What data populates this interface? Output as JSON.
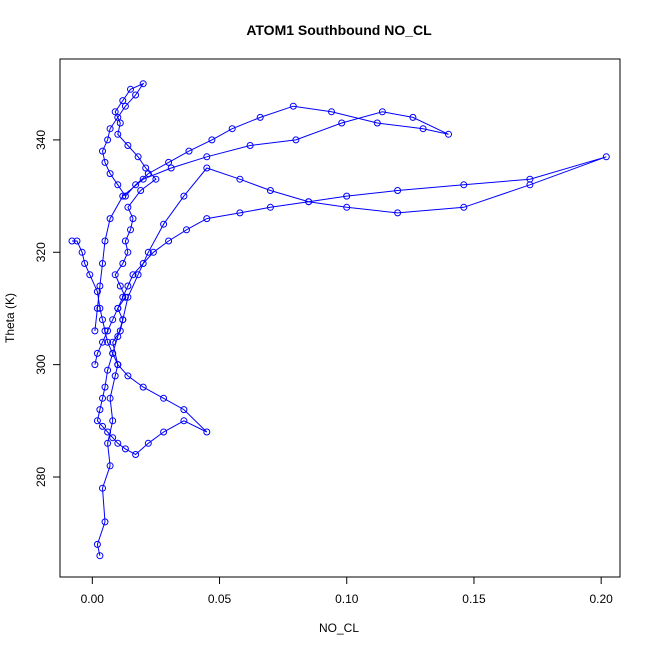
{
  "chart_data": {
    "type": "line",
    "title": "ATOM1 Southbound NO_CL",
    "xlabel": "NO_CL",
    "ylabel": "Theta (K)",
    "xlim": [
      -0.0127,
      0.2074
    ],
    "ylim": [
      262.2,
      354.4
    ],
    "xticks": [
      {
        "value": 0.0,
        "label": "0.00"
      },
      {
        "value": 0.05,
        "label": "0.05"
      },
      {
        "value": 0.1,
        "label": "0.10"
      },
      {
        "value": 0.15,
        "label": "0.15"
      },
      {
        "value": 0.2,
        "label": "0.20"
      }
    ],
    "yticks": [
      {
        "value": 280,
        "label": "280"
      },
      {
        "value": 300,
        "label": "300"
      },
      {
        "value": 320,
        "label": "320"
      },
      {
        "value": 340,
        "label": "340"
      }
    ],
    "grid": false,
    "legend": "none",
    "series_color": "#0000ff",
    "marker": "open-circle",
    "series": [
      {
        "x": [
          0.003,
          0.002,
          0.005,
          0.004,
          0.007,
          0.006,
          0.008,
          0.007,
          0.009,
          0.01,
          0.008,
          0.011,
          0.012,
          0.01,
          0.013,
          0.011,
          0.009,
          0.012,
          0.014,
          0.013,
          0.015,
          0.016,
          0.014,
          0.019,
          0.025,
          0.021,
          0.018,
          0.014,
          0.01,
          0.011,
          0.009,
          0.012,
          0.015,
          0.02,
          0.017,
          0.013,
          0.01,
          0.007,
          0.006,
          0.004,
          0.005,
          0.007,
          0.01,
          0.013,
          0.017,
          0.022,
          0.03,
          0.038,
          0.047,
          0.055,
          0.066,
          0.079,
          0.094,
          0.112,
          0.13,
          0.14,
          0.126,
          0.114,
          0.098,
          0.08,
          0.062,
          0.045,
          0.031,
          0.02,
          0.012,
          0.007,
          0.005,
          0.004,
          0.003,
          0.002,
          0.001
        ],
        "y": [
          266,
          268,
          272,
          278,
          282,
          286,
          290,
          294,
          298,
          300,
          304,
          306,
          308,
          310,
          312,
          314,
          316,
          318,
          320,
          322,
          324,
          326,
          328,
          331,
          333,
          335,
          337,
          339,
          341,
          343,
          345,
          347,
          349,
          350,
          348,
          346,
          344,
          342,
          340,
          338,
          336,
          334,
          332,
          330,
          332,
          334,
          336,
          338,
          340,
          342,
          344,
          346,
          345,
          343,
          342,
          341,
          344,
          345,
          343,
          340,
          339,
          337,
          335,
          333,
          330,
          326,
          322,
          318,
          314,
          310,
          306
        ]
      },
      {
        "x": [
          0.001,
          0.002,
          0.004,
          0.006,
          0.008,
          0.01,
          0.012,
          0.014,
          0.016,
          0.02,
          0.024,
          0.03,
          0.037,
          0.045,
          0.058,
          0.07,
          0.085,
          0.1,
          0.12,
          0.146,
          0.172,
          0.202,
          0.172,
          0.146,
          0.12,
          0.1,
          0.085,
          0.07,
          0.058,
          0.045,
          0.036,
          0.028,
          0.022,
          0.018,
          0.014,
          0.012,
          0.01,
          0.008,
          0.006,
          0.005,
          0.004,
          0.003,
          0.002,
          0.004,
          0.006,
          0.008,
          0.01,
          0.013,
          0.017,
          0.022,
          0.028,
          0.036,
          0.045,
          0.036,
          0.028,
          0.02,
          0.014,
          0.01,
          0.008,
          0.006,
          0.005,
          0.004,
          0.003,
          0.002,
          -0.001,
          -0.003,
          -0.004,
          -0.006,
          -0.008
        ],
        "y": [
          300,
          302,
          304,
          306,
          308,
          310,
          312,
          314,
          316,
          318,
          320,
          322,
          324,
          326,
          327,
          328,
          329,
          330,
          331,
          332,
          333,
          337,
          332,
          328,
          327,
          328,
          329,
          331,
          333,
          335,
          330,
          325,
          320,
          316,
          312,
          308,
          305,
          302,
          299,
          296,
          294,
          292,
          290,
          289,
          288,
          287,
          286,
          285,
          284,
          286,
          288,
          290,
          288,
          292,
          294,
          296,
          298,
          300,
          302,
          304,
          306,
          308,
          310,
          313,
          316,
          318,
          320,
          322,
          322
        ]
      }
    ]
  }
}
